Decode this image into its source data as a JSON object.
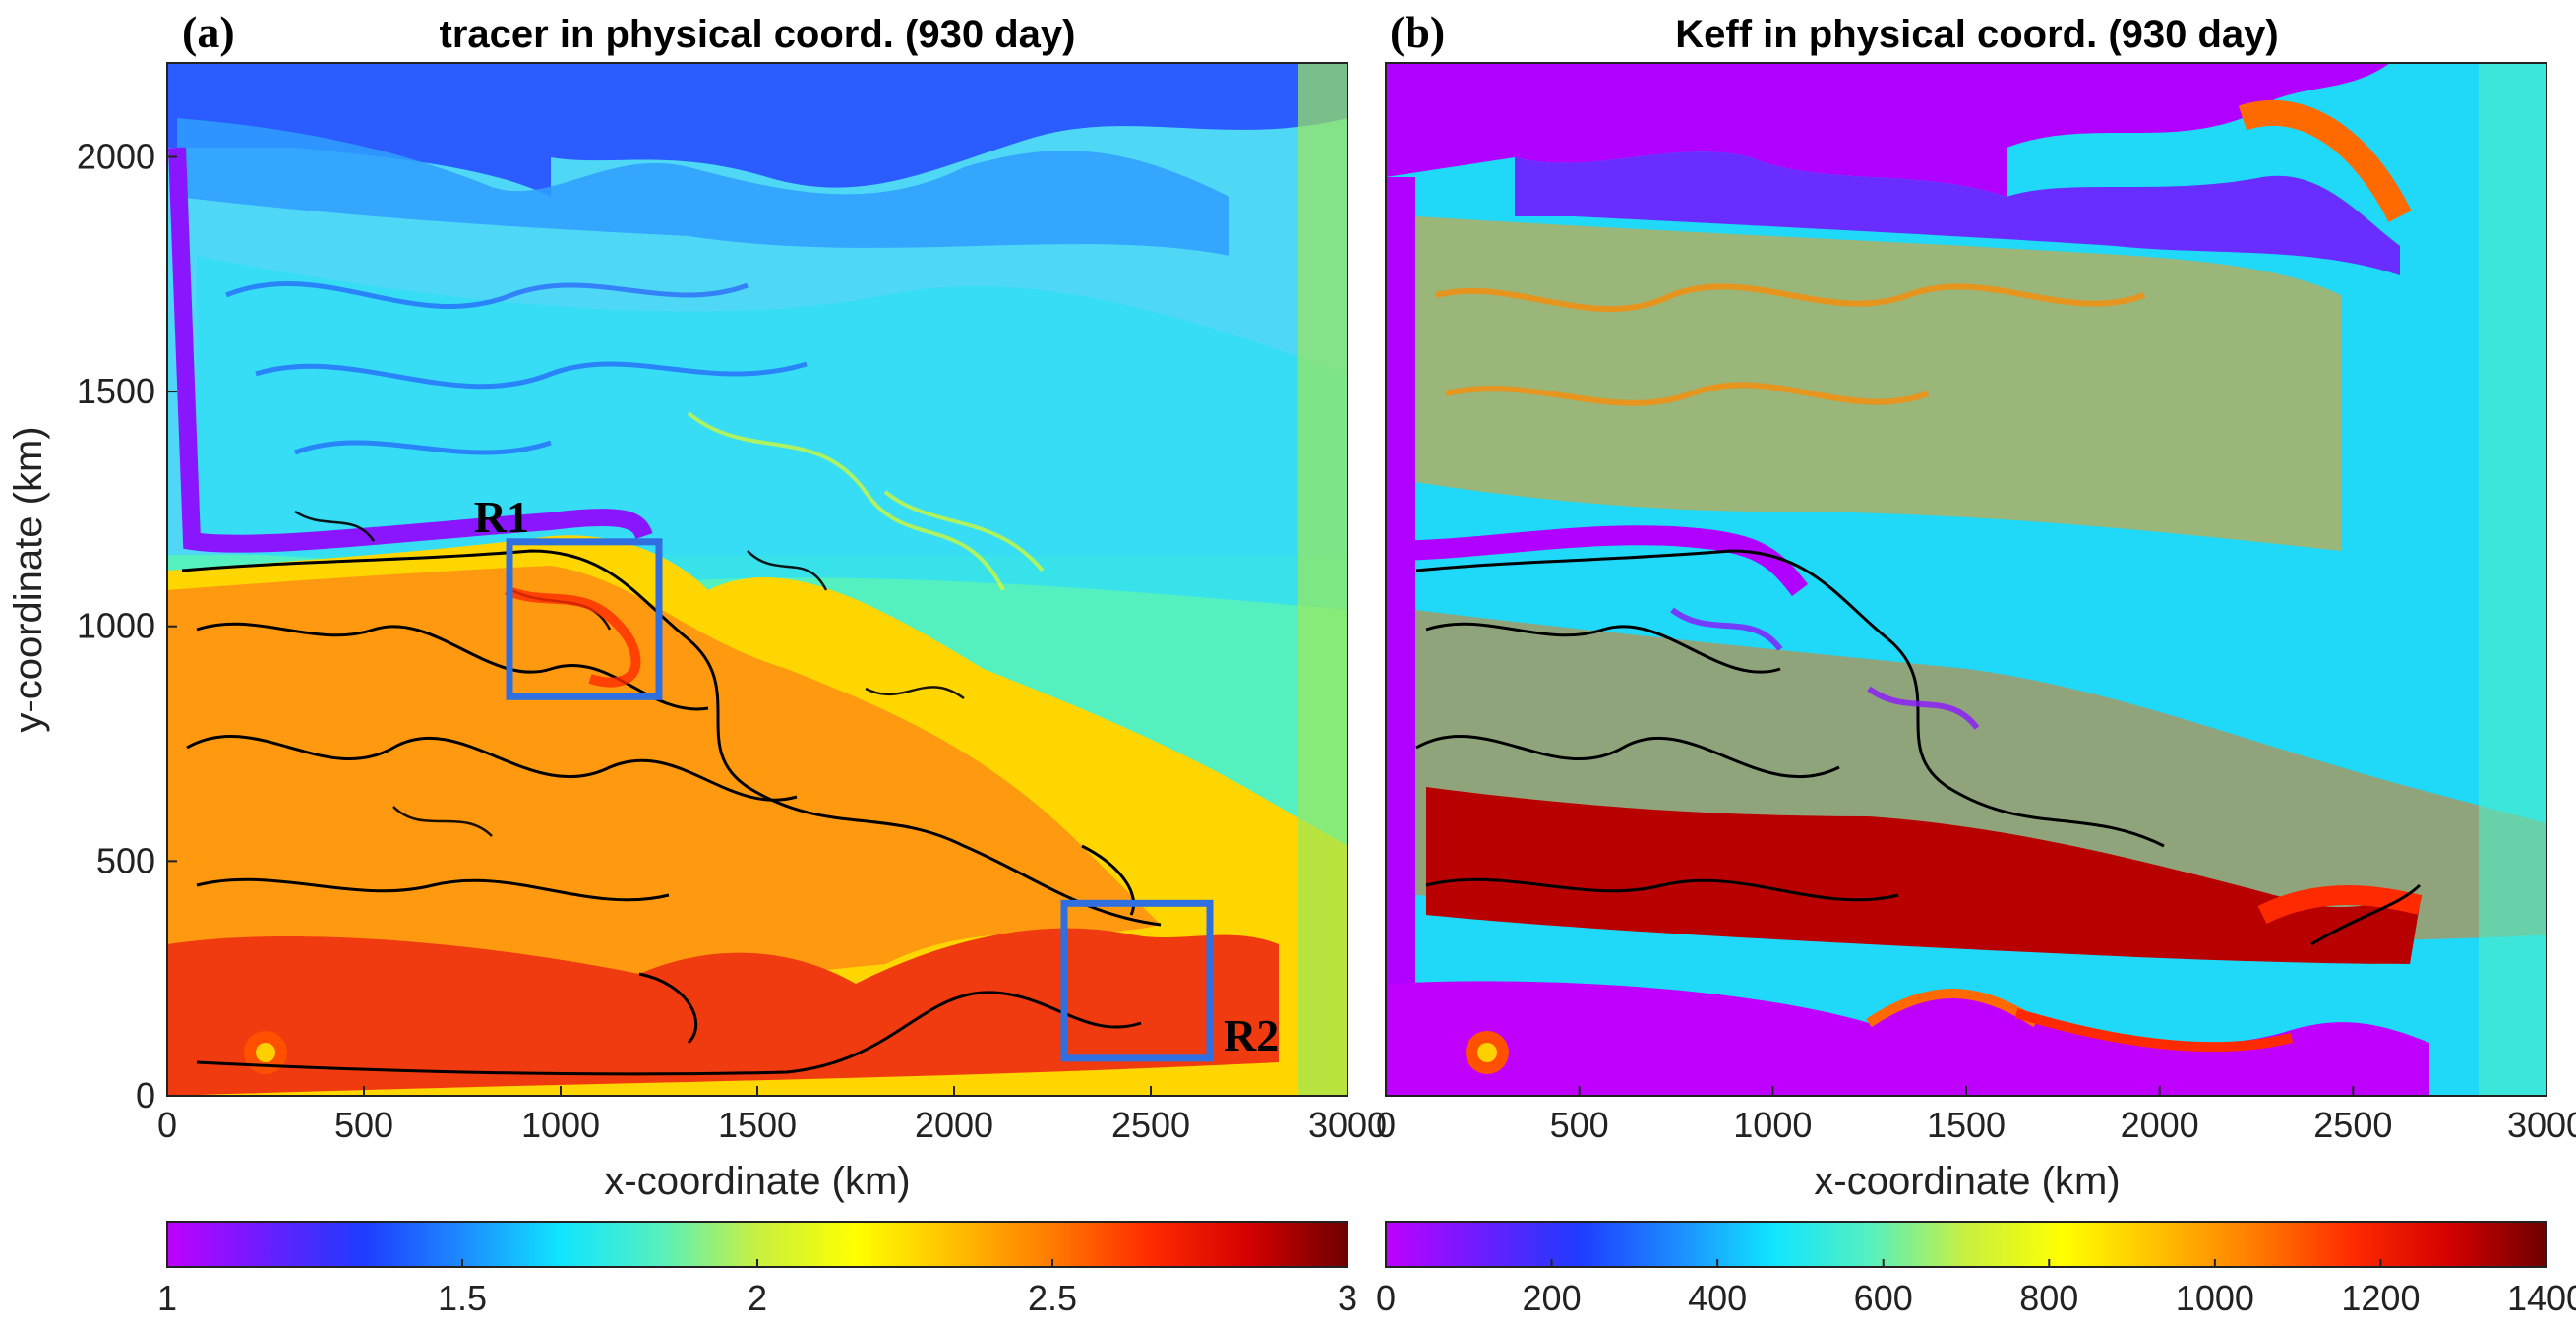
{
  "chart_data": [
    {
      "type": "heatmap",
      "panel_label": "(a)",
      "title": "tracer in physical coord. (930 day)",
      "xlabel": "x-coordinate (km)",
      "ylabel": "y-coordinate (km)",
      "xlim": [
        0,
        3000
      ],
      "ylim": [
        0,
        2200
      ],
      "x_ticks": [
        0,
        500,
        1000,
        1500,
        2000,
        2500,
        3000
      ],
      "y_ticks": [
        0,
        500,
        1000,
        1500,
        2000
      ],
      "colorbar": {
        "range": [
          1,
          3
        ],
        "ticks": [
          "1",
          "1.5",
          "2",
          "2.5",
          "3"
        ]
      },
      "regions": [
        {
          "name": "R1",
          "x0": 870,
          "x1": 1250,
          "y0": 850,
          "y1": 1180
        },
        {
          "name": "R2",
          "x0": 2280,
          "x1": 2650,
          "y0": 80,
          "y1": 410
        }
      ]
    },
    {
      "type": "heatmap",
      "panel_label": "(b)",
      "title": "Keff in physical coord. (930 day)",
      "xlabel": "x-coordinate (km)",
      "ylabel": "",
      "xlim": [
        0,
        3000
      ],
      "ylim": [
        0,
        2200
      ],
      "x_ticks": [
        0,
        500,
        1000,
        1500,
        2000,
        2500,
        3000
      ],
      "y_ticks": [],
      "colorbar": {
        "range": [
          0,
          1400
        ],
        "ticks": [
          "0",
          "200",
          "400",
          "600",
          "800",
          "1000",
          "1200",
          "1400"
        ]
      }
    }
  ],
  "colors": {
    "colormap": [
      "#c000ff",
      "#6a1dff",
      "#1f3cff",
      "#1d8bff",
      "#10e5ff",
      "#55f0c0",
      "#c8f040",
      "#ffff00",
      "#ffbf00",
      "#ff7a00",
      "#ff2a00",
      "#d40000",
      "#6e0000"
    ],
    "region_box": "#2f6fe0",
    "contour": "#000000"
  }
}
